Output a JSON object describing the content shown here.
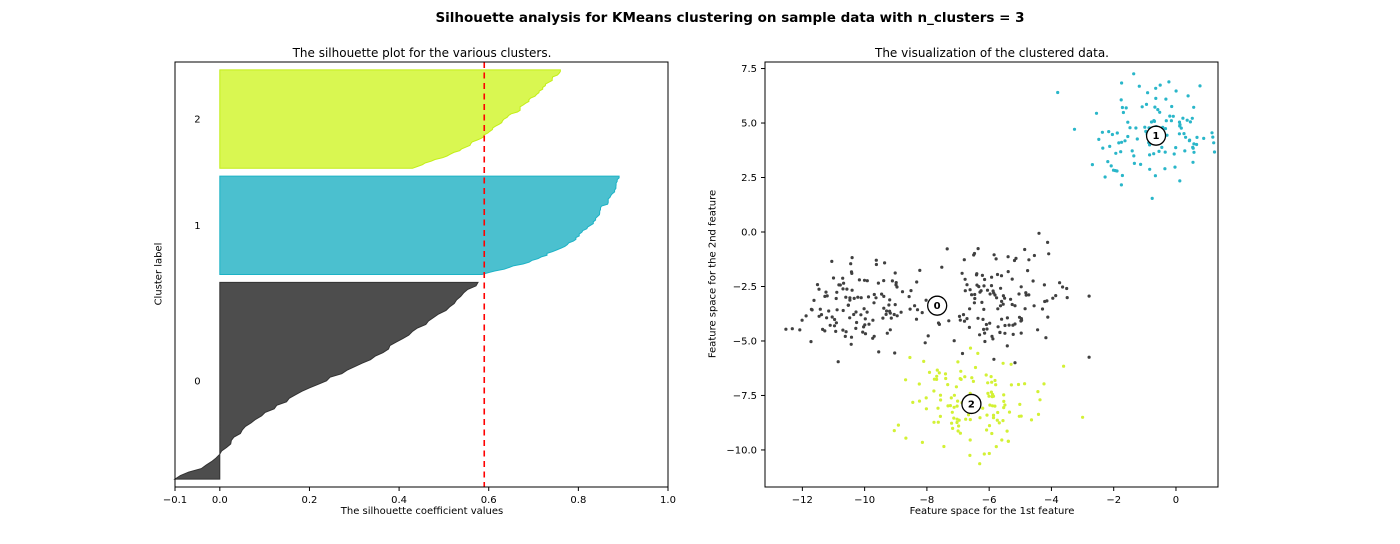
{
  "figure": {
    "title": "Silhouette analysis for KMeans clustering on sample data with n_clusters = 3"
  },
  "chart_data": [
    {
      "type": "area",
      "name": "silhouette-plot",
      "title": "The silhouette plot for the various clusters.",
      "xlabel": "The silhouette coefficient values",
      "ylabel": "Cluster label",
      "xlim": [
        -0.1,
        1.0
      ],
      "xticks": [
        -0.1,
        0.0,
        0.2,
        0.4,
        0.6,
        0.8,
        1.0
      ],
      "xtick_labels": [
        "−0.1",
        "0.0",
        "0.2",
        "0.4",
        "0.6",
        "0.8",
        "1.0"
      ],
      "avg_silhouette": 0.59,
      "avg_line_color": "#ff0000",
      "y_start": 10,
      "y_gap": 10,
      "y_max": 540,
      "label_x": -0.05,
      "clusters": [
        {
          "label": "0",
          "count": 250,
          "fill": "#4d4d4d",
          "edge": "#333333",
          "silhouette_min": -0.1,
          "silhouette_max": 0.576,
          "values_bottom_to_top": [
            -0.1,
            -0.05,
            -0.01,
            0.01,
            0.03,
            0.05,
            0.08,
            0.11,
            0.15,
            0.19,
            0.235,
            0.28,
            0.325,
            0.365,
            0.4,
            0.435,
            0.465,
            0.495,
            0.525,
            0.55,
            0.576
          ]
        },
        {
          "label": "1",
          "count": 125,
          "fill": "#4bc0cf",
          "edge": "#1cb2c5",
          "silhouette_min": 0.585,
          "silhouette_max": 0.886,
          "values_bottom_to_top": [
            0.585,
            0.63,
            0.67,
            0.7,
            0.727,
            0.75,
            0.77,
            0.787,
            0.8,
            0.813,
            0.824,
            0.834,
            0.843,
            0.851,
            0.858,
            0.865,
            0.871,
            0.876,
            0.88,
            0.883,
            0.886
          ]
        },
        {
          "label": "2",
          "count": 125,
          "fill": "#d9f751",
          "edge": "#c3ee16",
          "silhouette_min": 0.43,
          "silhouette_max": 0.76,
          "values_bottom_to_top": [
            0.43,
            0.46,
            0.49,
            0.515,
            0.54,
            0.56,
            0.578,
            0.595,
            0.61,
            0.625,
            0.64,
            0.654,
            0.667,
            0.68,
            0.692,
            0.704,
            0.716,
            0.728,
            0.74,
            0.75,
            0.76
          ]
        }
      ]
    },
    {
      "type": "scatter",
      "name": "clustered-data-plot",
      "title": "The visualization of the clustered data.",
      "xlabel": "Feature space for the 1st feature",
      "ylabel": "Feature space for the 2nd feature",
      "xlim": [
        -13.2,
        1.35
      ],
      "ylim": [
        -11.7,
        7.8
      ],
      "xticks": [
        -12,
        -10,
        -8,
        -6,
        -4,
        -2,
        0
      ],
      "xtick_labels": [
        "−12",
        "−10",
        "−8",
        "−6",
        "−4",
        "−2",
        "0"
      ],
      "yticks": [
        7.5,
        5.0,
        2.5,
        0.0,
        -2.5,
        -5.0,
        -7.5,
        -10.0
      ],
      "ytick_labels": [
        "7.5",
        "5.0",
        "2.5",
        "0.0",
        "−2.5",
        "−5.0",
        "−7.5",
        "−10.0"
      ],
      "seed": 42,
      "dot_radius": 1.6,
      "clusters": [
        {
          "label": "0",
          "color": "#404040",
          "lobes": [
            {
              "cx": -10.15,
              "cy": -3.35,
              "sx": 1.05,
              "sy": 1.0,
              "n": 125
            },
            {
              "cx": -5.65,
              "cy": -3.05,
              "sx": 1.1,
              "sy": 1.15,
              "n": 125
            }
          ],
          "center": {
            "x": -7.67,
            "y": -3.38
          }
        },
        {
          "label": "1",
          "color": "#29b6c9",
          "lobes": [
            {
              "cx": -0.7,
              "cy": 4.4,
              "sx": 1.2,
              "sy": 1.1,
              "n": 125
            }
          ],
          "center": {
            "x": -0.64,
            "y": 4.42
          }
        },
        {
          "label": "2",
          "color": "#d3f135",
          "lobes": [
            {
              "cx": -6.6,
              "cy": -7.9,
              "sx": 1.15,
              "sy": 1.05,
              "n": 125
            }
          ],
          "center": {
            "x": -6.57,
            "y": -7.89
          }
        }
      ],
      "outliers": [
        {
          "cluster": "2",
          "x": -3.0,
          "y": -8.5
        },
        {
          "cluster": "1",
          "x": -3.8,
          "y": 6.4
        }
      ],
      "center_marker": {
        "fill": "#ffffff",
        "stroke": "#000000",
        "radius": 9.5
      }
    }
  ]
}
